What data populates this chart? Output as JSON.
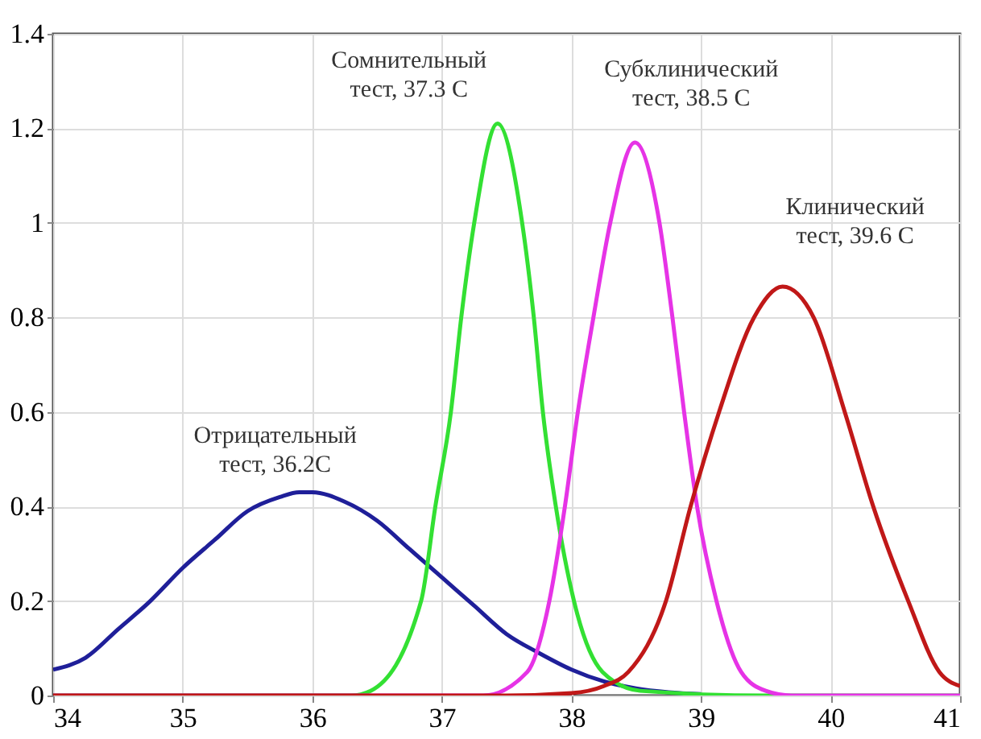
{
  "chart_data": {
    "type": "line",
    "xlim": [
      34,
      41
    ],
    "ylim": [
      0,
      1.4
    ],
    "xticks": [
      34,
      35,
      36,
      37,
      38,
      39,
      40,
      41
    ],
    "yticks": [
      0,
      0.2,
      0.4,
      0.6,
      0.8,
      1,
      1.2,
      1.4
    ],
    "grid": true,
    "marker": "none",
    "line_style": "solid",
    "series": [
      {
        "name": "Отрицательный\nтест, 36.2C",
        "color": "#1f1f99",
        "x": [
          34.0,
          34.25,
          34.5,
          34.75,
          35.0,
          35.25,
          35.5,
          35.75,
          35.9,
          36.0,
          36.25,
          36.5,
          36.75,
          37.0,
          37.25,
          37.5,
          37.75,
          38.0,
          38.25,
          38.5,
          38.75,
          39.0
        ],
        "values": [
          0.055,
          0.08,
          0.14,
          0.2,
          0.27,
          0.33,
          0.39,
          0.42,
          0.43,
          0.43,
          0.41,
          0.37,
          0.31,
          0.25,
          0.19,
          0.13,
          0.09,
          0.055,
          0.03,
          0.015,
          0.007,
          0.003
        ]
      },
      {
        "name": "Сомнительный\nтест, 37.3 С",
        "color": "#33e033",
        "x": [
          34.0,
          36.3,
          36.45,
          36.84,
          36.95,
          37.07,
          37.15,
          37.25,
          37.43,
          37.62,
          37.71,
          37.78,
          37.88,
          38.02,
          38.24,
          38.53,
          39.5,
          41.0
        ],
        "values": [
          0,
          0,
          0.01,
          0.2,
          0.4,
          0.6,
          0.8,
          1.0,
          1.21,
          1.0,
          0.8,
          0.6,
          0.4,
          0.2,
          0.05,
          0.01,
          0,
          0
        ]
      },
      {
        "name": "Субклинический\nтест, 38.5 С",
        "color": "#e633e6",
        "x": [
          34.0,
          37.32,
          37.66,
          37.83,
          37.95,
          38.05,
          38.17,
          38.3,
          38.49,
          38.68,
          38.78,
          38.87,
          38.97,
          39.12,
          39.31,
          39.5,
          39.7,
          41.0
        ],
        "values": [
          0,
          0,
          0.05,
          0.2,
          0.4,
          0.6,
          0.8,
          1.0,
          1.17,
          1.0,
          0.8,
          0.6,
          0.4,
          0.2,
          0.05,
          0.01,
          0,
          0
        ]
      },
      {
        "name": "Клинический\nтест, 39.6 С",
        "color": "#c01818",
        "x": [
          34.0,
          37.5,
          38.0,
          38.25,
          38.44,
          38.73,
          38.92,
          39.14,
          39.41,
          39.63,
          39.87,
          40.11,
          40.33,
          40.6,
          40.84,
          41.0
        ],
        "values": [
          0,
          0,
          0.005,
          0.02,
          0.05,
          0.2,
          0.4,
          0.6,
          0.8,
          0.865,
          0.8,
          0.6,
          0.4,
          0.2,
          0.05,
          0.02
        ]
      }
    ]
  }
}
